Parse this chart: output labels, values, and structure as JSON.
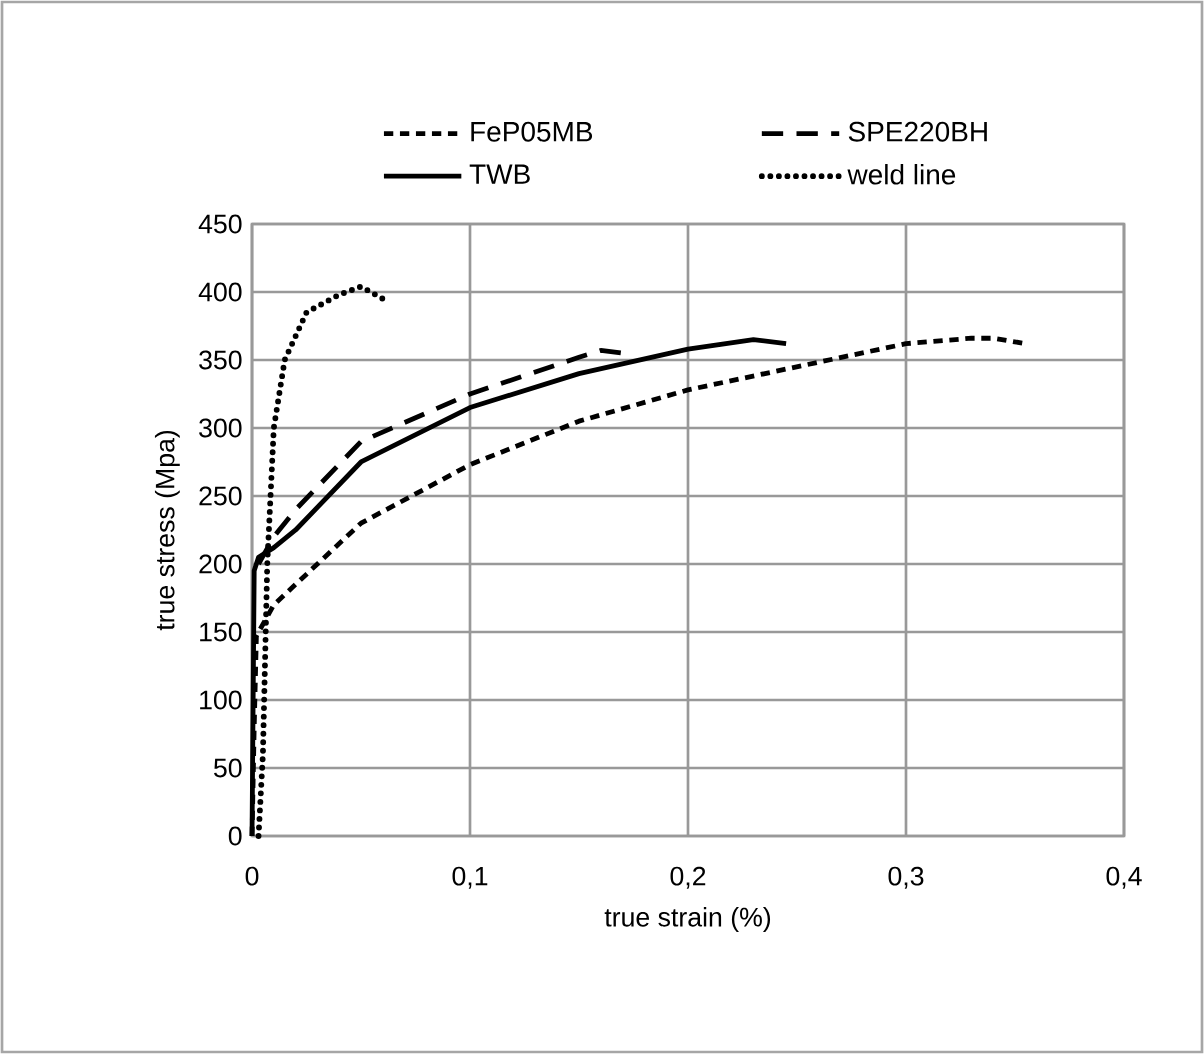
{
  "chart_data": {
    "type": "line",
    "xlabel": "true strain (%)",
    "ylabel": "true stress  (Mpa)",
    "xlim": [
      0,
      0.4
    ],
    "ylim": [
      0,
      450
    ],
    "xticks": [
      {
        "value": 0,
        "label": "0"
      },
      {
        "value": 0.1,
        "label": "0,1"
      },
      {
        "value": 0.2,
        "label": "0,2"
      },
      {
        "value": 0.3,
        "label": "0,3"
      },
      {
        "value": 0.4,
        "label": "0,4"
      }
    ],
    "yticks": [
      0,
      50,
      100,
      150,
      200,
      250,
      300,
      350,
      400,
      450
    ],
    "grid": true,
    "legend": "top",
    "series": [
      {
        "name": "FeP05MB",
        "color": "#000000",
        "line_style": "dashed",
        "x": [
          0,
          0.001,
          0.002,
          0.01,
          0.022,
          0.05,
          0.1,
          0.15,
          0.2,
          0.25,
          0.3,
          0.33,
          0.34,
          0.355
        ],
        "values": [
          0,
          80,
          147,
          170,
          188,
          230,
          273,
          305,
          328,
          345,
          362,
          366,
          366,
          362
        ]
      },
      {
        "name": "SPE220BH",
        "color": "#000000",
        "line_style": "longdashed",
        "x": [
          0.003,
          0.01,
          0.02,
          0.05,
          0.1,
          0.15,
          0.16,
          0.17
        ],
        "values": [
          200,
          220,
          240,
          290,
          325,
          352,
          357,
          355
        ]
      },
      {
        "name": "TWB",
        "color": "#000000",
        "line_style": "solid",
        "x": [
          0,
          0.001,
          0.003,
          0.01,
          0.02,
          0.05,
          0.1,
          0.15,
          0.2,
          0.23,
          0.245
        ],
        "values": [
          0,
          195,
          205,
          212,
          225,
          275,
          315,
          340,
          358,
          365,
          362
        ]
      },
      {
        "name": "weld line",
        "color": "#000000",
        "line_style": "dotted",
        "x": [
          0.003,
          0.005,
          0.006,
          0.007,
          0.01,
          0.015,
          0.025,
          0.04,
          0.05,
          0.06
        ],
        "values": [
          0,
          60,
          130,
          200,
          300,
          350,
          385,
          398,
          404,
          395
        ]
      }
    ]
  }
}
